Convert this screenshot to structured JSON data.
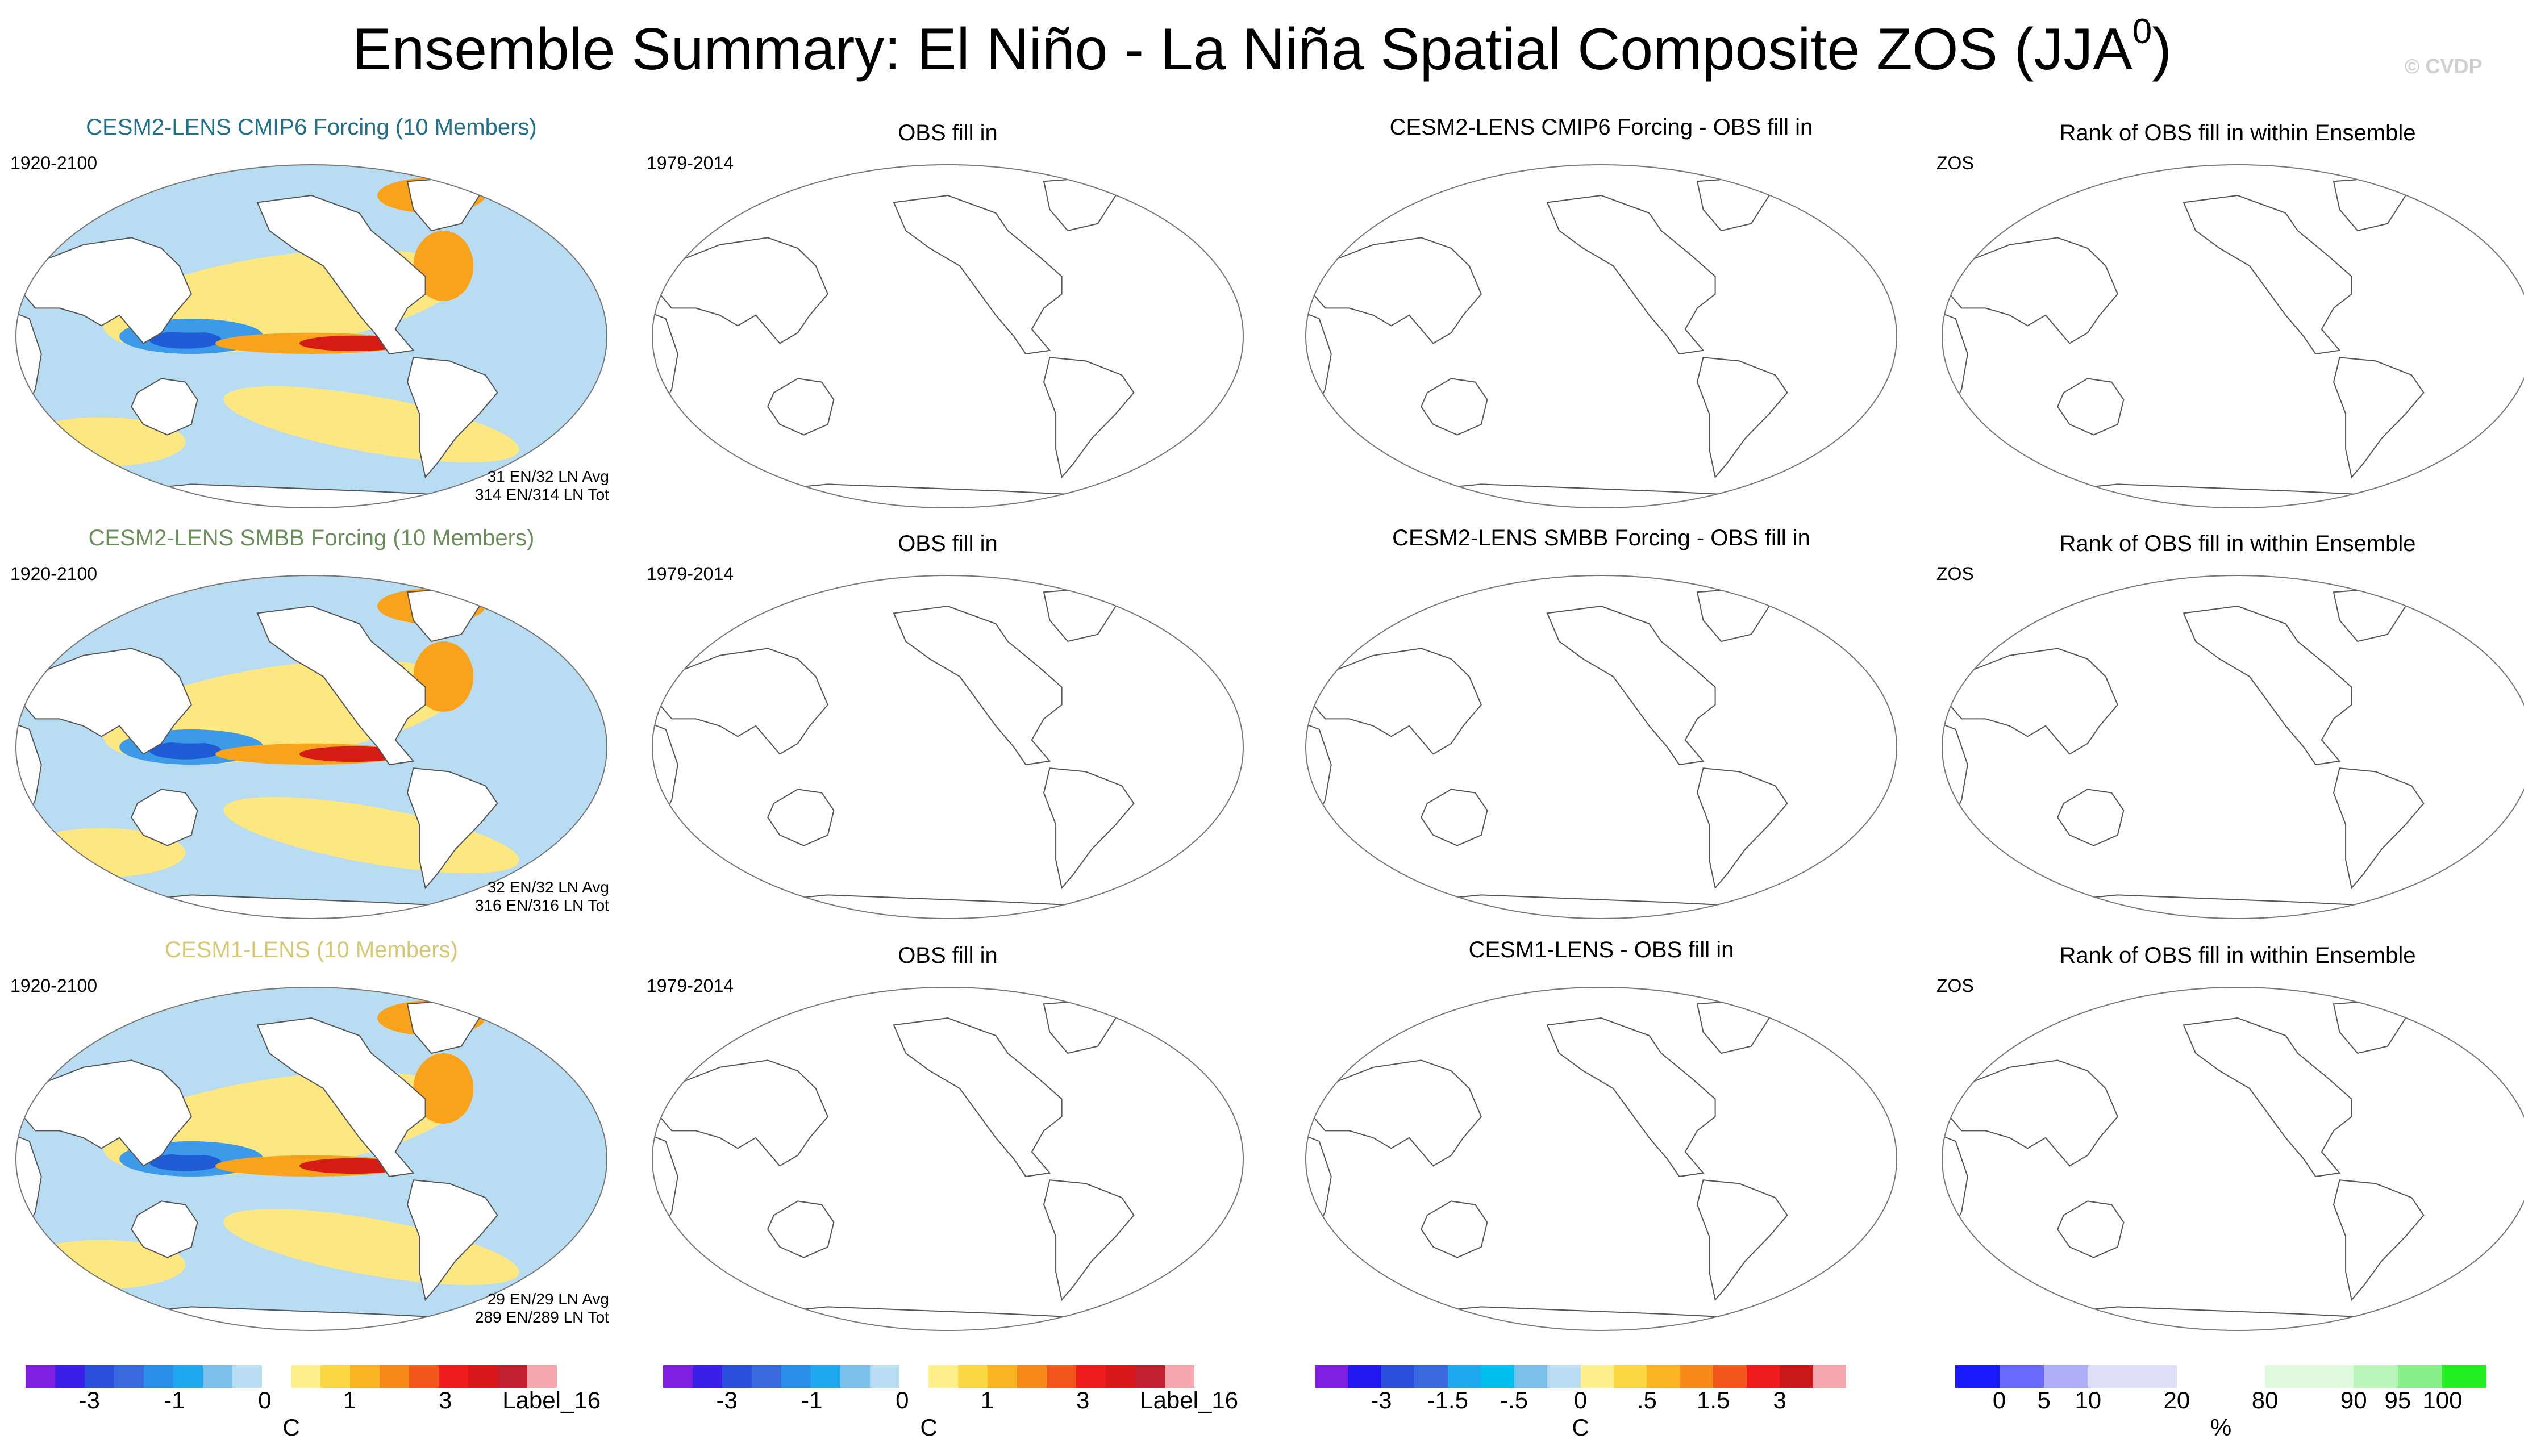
{
  "title": "Ensemble Summary: El Niño - La Niña Spatial Composite ZOS (JJA",
  "title_sup": "0",
  "title_close": ")",
  "watermark": "© CVDP",
  "rows": [
    {
      "model": {
        "title": "CESM2-LENS CMIP6 Forcing (10 Members)",
        "title_color": "#1e6e8c",
        "years": "1920-2100",
        "stat1": "31 EN/32 LN Avg",
        "stat2": "314 EN/314 LN Tot"
      },
      "obs": {
        "title": "OBS fill in",
        "years": "1979-2014"
      },
      "diff": {
        "title": "CESM2-LENS CMIP6 Forcing - OBS fill in"
      },
      "rank": {
        "title": "Rank of OBS fill in within Ensemble",
        "var": "ZOS"
      }
    },
    {
      "model": {
        "title": "CESM2-LENS SMBB Forcing (10 Members)",
        "title_color": "#6a8f5a",
        "years": "1920-2100",
        "stat1": "32 EN/32 LN Avg",
        "stat2": "316 EN/316 LN Tot"
      },
      "obs": {
        "title": "OBS fill in",
        "years": "1979-2014"
      },
      "diff": {
        "title": "CESM2-LENS SMBB Forcing - OBS fill in"
      },
      "rank": {
        "title": "Rank of OBS fill in within Ensemble",
        "var": "ZOS"
      }
    },
    {
      "model": {
        "title": "CESM1-LENS (10 Members)",
        "title_color": "#d8c873",
        "years": "1920-2100",
        "stat1": "29 EN/29 LN Avg",
        "stat2": "289 EN/289 LN Tot"
      },
      "obs": {
        "title": "OBS fill in",
        "years": "1979-2014"
      },
      "diff": {
        "title": "CESM1-LENS - OBS fill in"
      },
      "rank": {
        "title": "Rank of OBS fill in within Ensemble",
        "var": "ZOS"
      }
    }
  ],
  "colorbars": {
    "model": {
      "colors": [
        "#7f1fe0",
        "#3a1fe8",
        "#2a4fdc",
        "#3a6ae0",
        "#2a8fea",
        "#1ea8f0",
        "#7ac0ea",
        "#b8dcf2",
        "#ffffff",
        "#fdf08a",
        "#fcd844",
        "#fbb424",
        "#f88a1a",
        "#f2561a",
        "#ee1c1c",
        "#d81818",
        "#c02030",
        "#f6a8b0"
      ],
      "ticks": [
        "-3",
        "-1",
        "0",
        "1",
        "3",
        "Label_16"
      ],
      "unit": "C"
    },
    "obs": {
      "colors": [
        "#7f1fe0",
        "#3a1fe8",
        "#2a4fdc",
        "#3a6ae0",
        "#2a8fea",
        "#1ea8f0",
        "#7ac0ea",
        "#b8dcf2",
        "#ffffff",
        "#fdf08a",
        "#fcd844",
        "#fbb424",
        "#f88a1a",
        "#f2561a",
        "#ee1c1c",
        "#d81818",
        "#c02030",
        "#f6a8b0"
      ],
      "ticks": [
        "-3",
        "-1",
        "0",
        "1",
        "3",
        "Label_16"
      ],
      "unit": "C"
    },
    "diff": {
      "colors": [
        "#7f1fe0",
        "#2418f0",
        "#2a4fdc",
        "#3a6ae0",
        "#1ea8f0",
        "#00c0f0",
        "#7ac0ea",
        "#b8dcf2",
        "#fdf08a",
        "#fcd844",
        "#fbb424",
        "#f88a1a",
        "#f2561a",
        "#ee1c1c",
        "#c81818",
        "#f6a8b0"
      ],
      "ticks": [
        "-3",
        "-1.5",
        "-.5",
        "0",
        ".5",
        "1.5",
        "3"
      ],
      "unit": "C"
    },
    "rank": {
      "colors": [
        "#1a1aff",
        "#6a6aff",
        "#b0b0f8",
        "#dedef8",
        "#dedef8",
        "#ffffff",
        "#ffffff",
        "#e0fae0",
        "#e0fae0",
        "#b8f5b8",
        "#88f088",
        "#22ee22"
      ],
      "ticks": [
        "0",
        "5",
        "10",
        "20",
        "80",
        "90",
        "95",
        "100"
      ],
      "unit": "%"
    }
  },
  "colors": {
    "pos_strong": "#d51c14",
    "pos_mid": "#f9a21b",
    "pos_light": "#fde781",
    "neg_light": "#b8dcf2",
    "neg_mid": "#3d9ae8",
    "neg_strong": "#1f5cd6"
  }
}
